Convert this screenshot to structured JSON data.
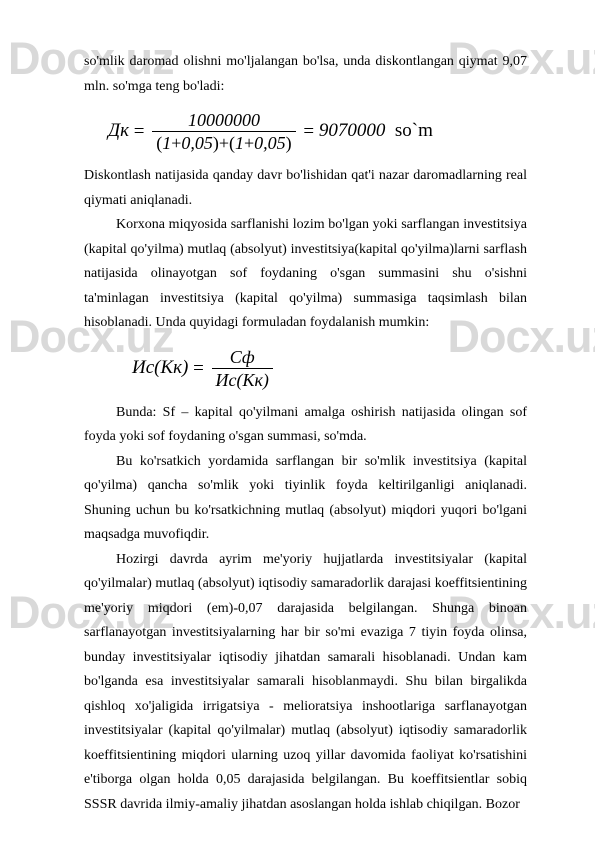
{
  "watermark": "Docx.uz",
  "paragraphs": {
    "p1": "so'mlik daromad olishni mo'ljalangan bo'lsa, unda diskontlangan qiymat 9,07 mln. so'mga teng bo'ladi:",
    "p2": "Diskontlash natijasida qanday davr bo'lishidan qat'i nazar daromadlarning real qiymati aniqlanadi.",
    "p3": "Korxona miqyosida sarflanishi lozim bo'lgan yoki sarflangan investitsiya (kapital qo'yilma) mutlaq (absolyut) investitsiya(kapital qo'yilma)larni sarflash natijasida olinayotgan sof foydaning o'sgan summasini shu o'sishni ta'minlagan investitsiya (kapital qo'yilma) summasiga taqsimlash bilan hisoblanadi. Unda quyidagi formuladan foydalanish mumkin:",
    "p4": "Bunda: Sf – kapital qo'yilmani amalga oshirish natijasida olingan sof foyda yoki sof foydaning o'sgan summasi, so'mda.",
    "p5": "Bu ko'rsatkich yordamida sarflangan bir so'mlik investitsiya (kapital qo'yilma) qancha so'mlik yoki tiyinlik foyda keltirilganligi aniqlanadi. Shuning uchun bu ko'rsatkichning mutlaq (absolyut) miqdori yuqori bo'lgani maqsadga muvofiqdir.",
    "p6": "Hozirgi davrda ayrim me'yoriy hujjatlarda investitsiyalar (kapital qo'yilmalar) mutlaq (absolyut) iqtisodiy samaradorlik darajasi koeffitsientining me'yoriy miqdori (em)-0,07 darajasida belgilangan. Shunga binoan sarflanayotgan investitsiyalarning har bir so'mi evaziga 7 tiyin foyda olinsa, bunday investitsiyalar iqtisodiy jihatdan samarali hisoblanadi. Undan kam bo'lganda esa investitsiyalar samarali hisoblanmaydi. Shu bilan birgalikda qishloq xo'jaligida irrigatsiya - melioratsiya inshootlariga sarflanayotgan investitsiyalar (kapital qo'yilmalar) mutlaq (absolyut) iqtisodiy samaradorlik koeffitsientining miqdori ularning uzoq yillar davomida faoliyat ko'rsatishini e'tiborga olgan holda 0,05 darajasida belgilangan. Bu koeffitsientlar sobiq SSSR davrida ilmiy-amaliy jihatdan asoslangan holda ishlab chiqilgan. Bozor"
  },
  "formula1": {
    "lhs": "Дк",
    "numerator": "10000000",
    "den_a": "1",
    "den_b": "0,05",
    "den_c": "1",
    "den_d": "0,05",
    "result": "9070000",
    "unit": "so`m"
  },
  "formula2": {
    "lhs": "Ис(Кк)",
    "num": "Сф",
    "den": "Ис(Кк)"
  }
}
